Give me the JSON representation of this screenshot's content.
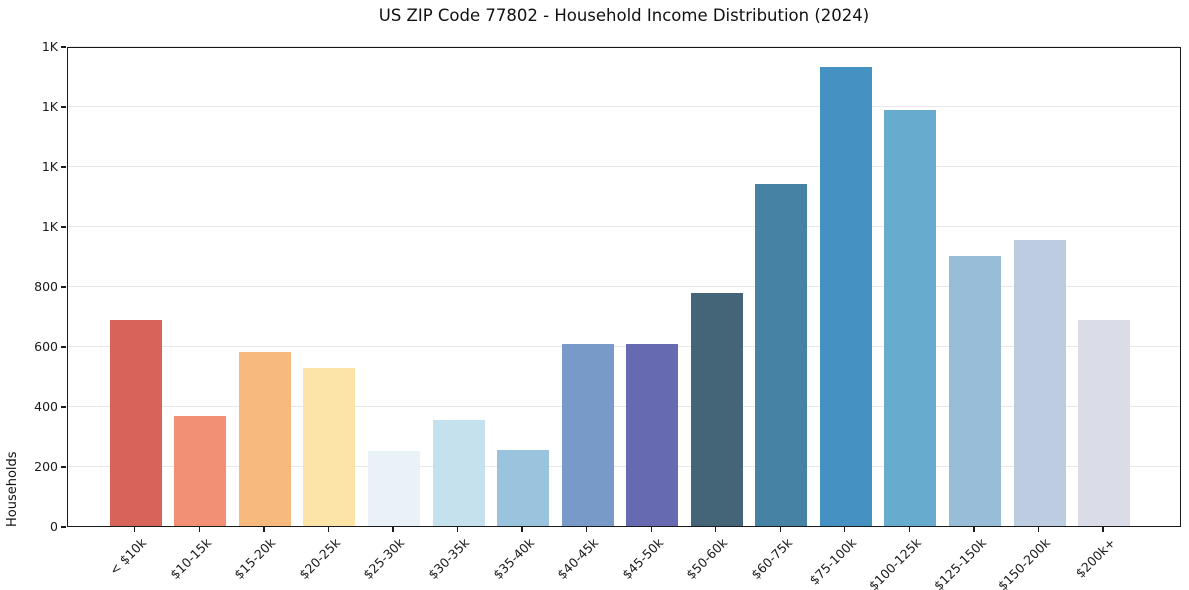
{
  "chart_data": {
    "type": "bar",
    "title": "US ZIP Code 77802 - Household Income Distribution (2024)",
    "xlabel": "",
    "ylabel": "Households",
    "categories": [
      "< $10k",
      "$10-15k",
      "$15-20k",
      "$20-25k",
      "$25-30k",
      "$30-35k",
      "$35-40k",
      "$40-45k",
      "$45-50k",
      "$50-60k",
      "$60-75k",
      "$75-100k",
      "$100-125k",
      "$125-150k",
      "$150-200k",
      "$200k+"
    ],
    "values": [
      687,
      366,
      579,
      527,
      250,
      353,
      254,
      607,
      608,
      776,
      1139,
      1530,
      1388,
      899,
      954,
      688
    ],
    "bar_colors": [
      "#d4574e",
      "#f1886a",
      "#f8b572",
      "#fce2a2",
      "#e7f2f6",
      "#bfdfec",
      "#92bedb",
      "#6e92c5",
      "#5a5fab",
      "#36596e",
      "#37799d",
      "#3789bd",
      "#5ba5cb",
      "#90b8d6",
      "#b9c8df",
      "#d7dae6"
    ],
    "ylim": [
      0,
      1600
    ],
    "yticks": [
      {
        "value": 0,
        "label": "0"
      },
      {
        "value": 200,
        "label": "200"
      },
      {
        "value": 400,
        "label": "400"
      },
      {
        "value": 600,
        "label": "600"
      },
      {
        "value": 800,
        "label": "800"
      },
      {
        "value": 1000,
        "label": "1K"
      },
      {
        "value": 1200,
        "label": "1K"
      },
      {
        "value": 1400,
        "label": "1K"
      },
      {
        "value": 1600,
        "label": "1K"
      }
    ],
    "grid": true,
    "legend": false,
    "background_color": "#ffffff",
    "grid_color": "#e7e7e7",
    "spine_color": "#1a1a1a"
  }
}
